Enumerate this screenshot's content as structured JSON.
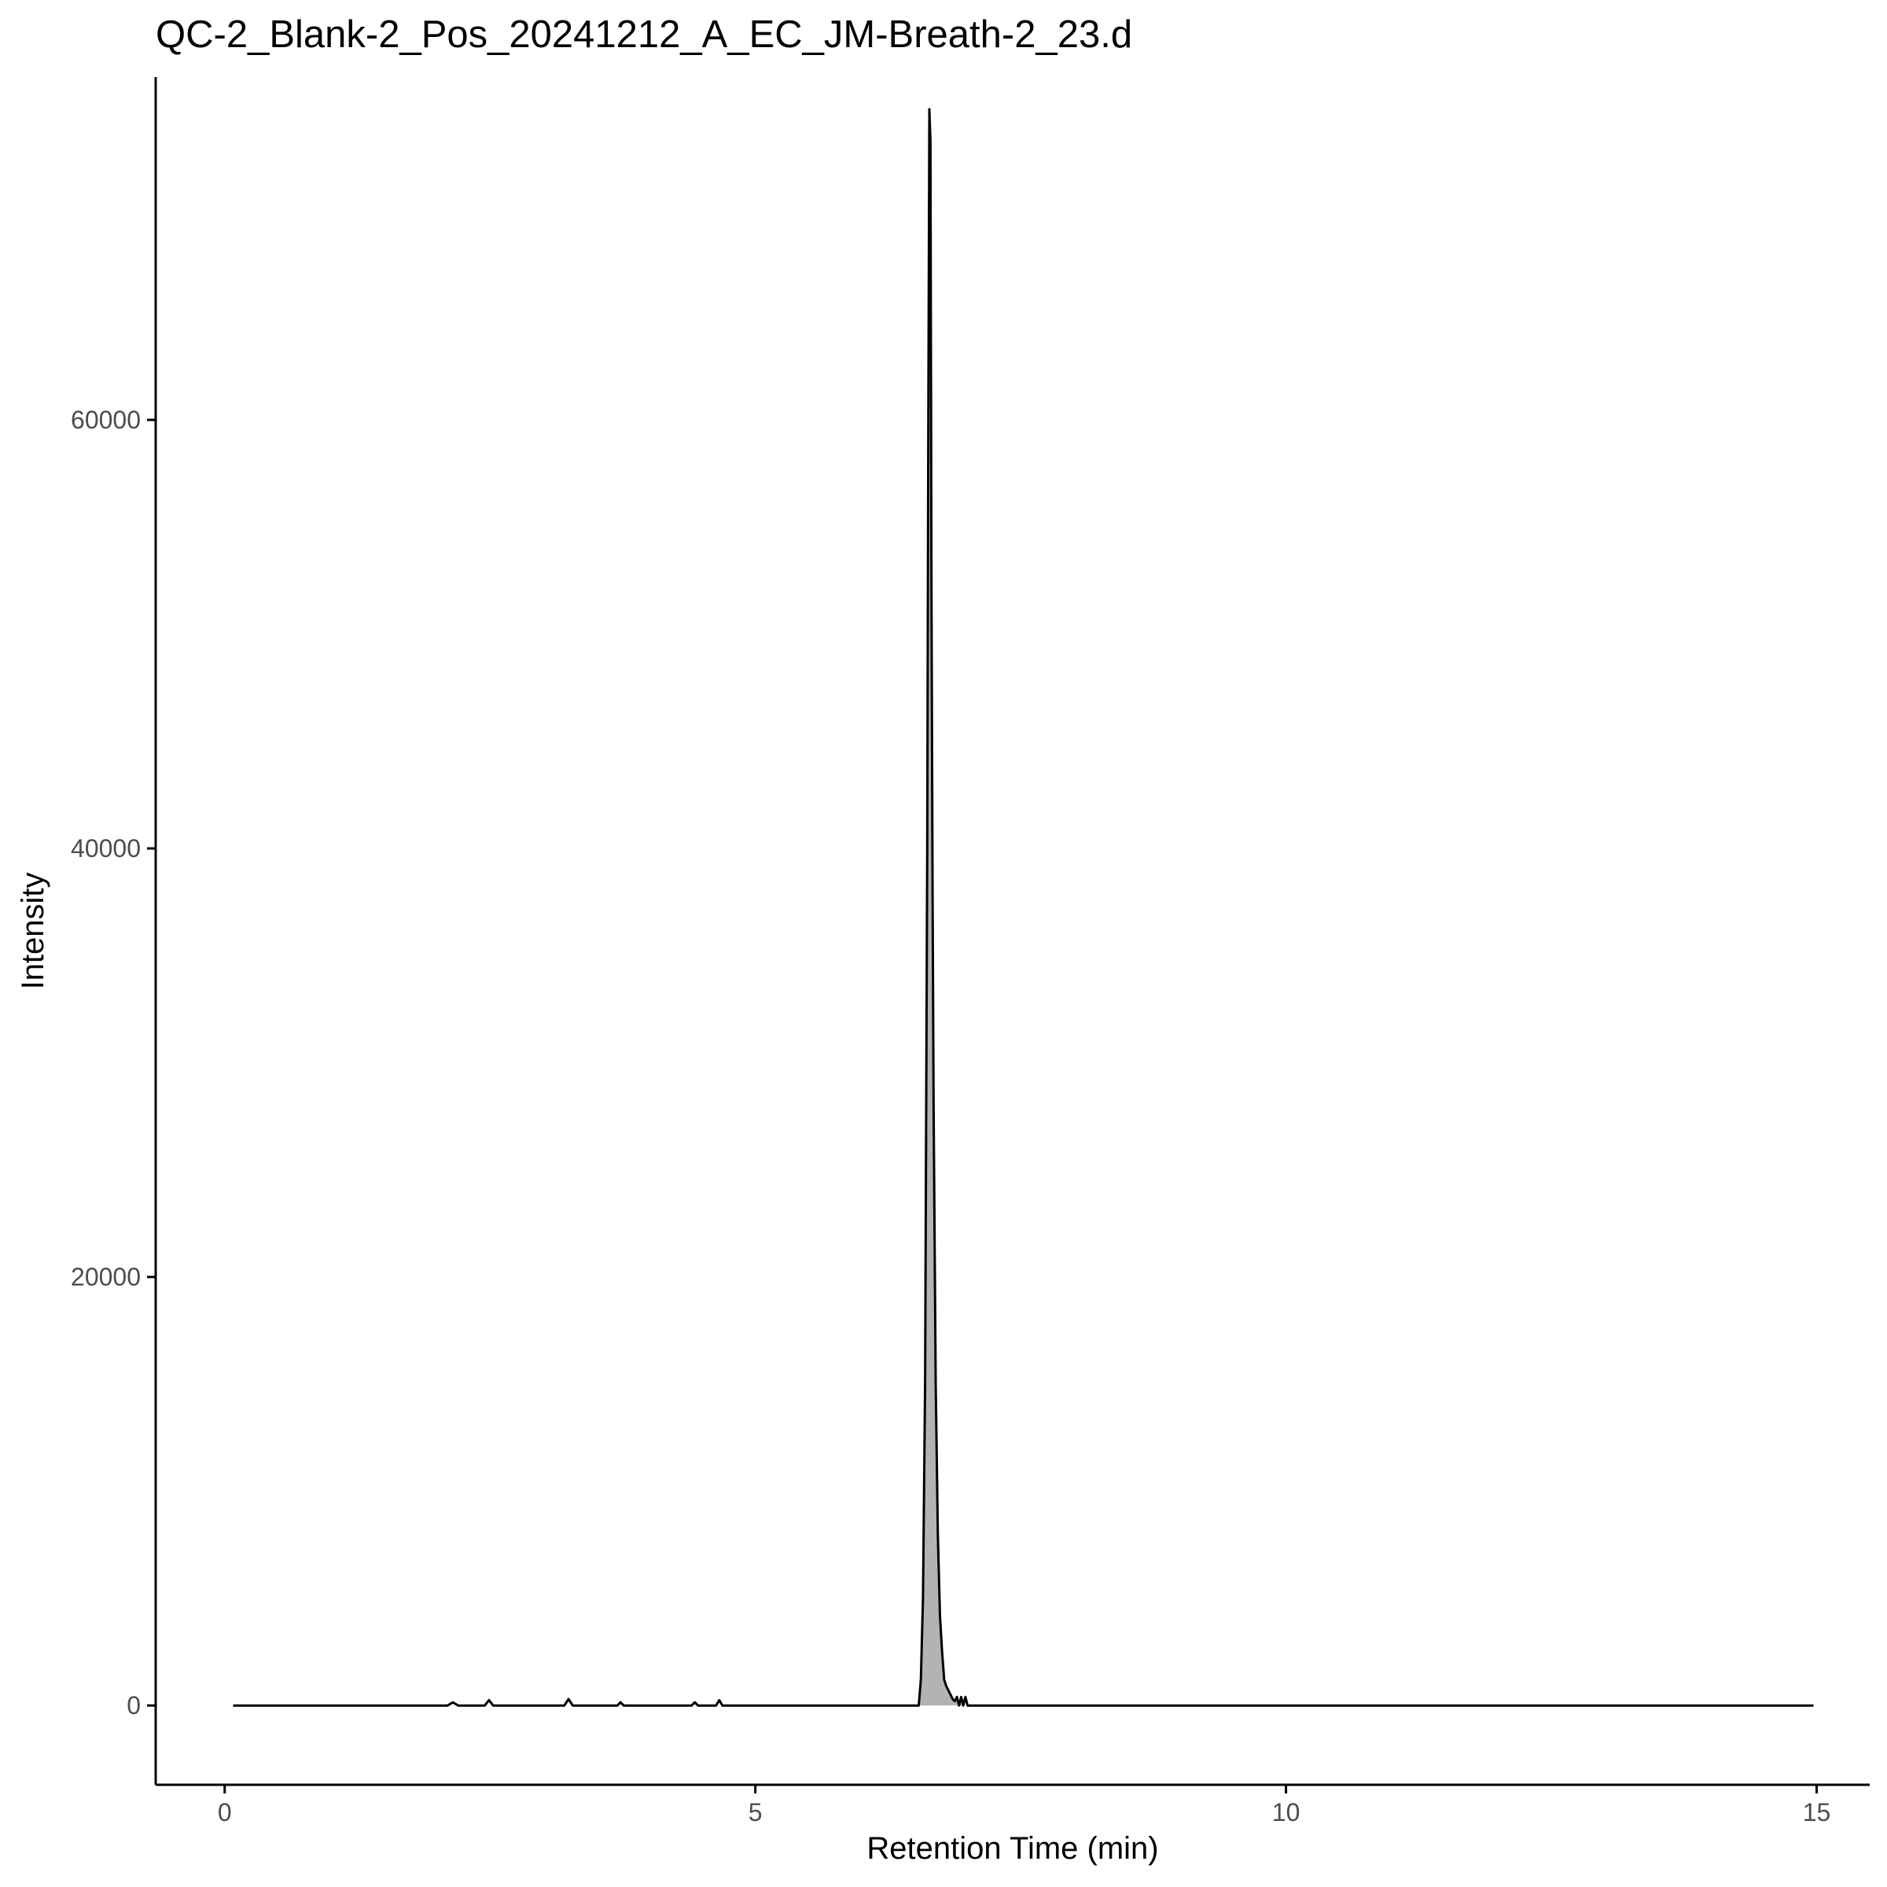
{
  "chart_data": {
    "type": "line",
    "title": "QC-2_Blank-2_Pos_20241212_A_EC_JM-Breath-2_23.d",
    "xlabel": "Retention Time (min)",
    "ylabel": "Intensity",
    "xlim": [
      -0.65,
      15.5
    ],
    "ylim": [
      -3700,
      76000
    ],
    "x_ticks": [
      0,
      5,
      10,
      15
    ],
    "x_tick_labels": [
      "0",
      "5",
      "10",
      "15"
    ],
    "y_ticks": [
      0,
      20000,
      40000,
      60000
    ],
    "y_tick_labels": [
      "0",
      "20000",
      "40000",
      "60000"
    ],
    "grid": false,
    "legend": "none",
    "trace_color": "#000000",
    "fill_color": "#b3b3b3",
    "series": [
      {
        "x": [
          0.08,
          2.1,
          2.15,
          2.2,
          2.45,
          2.49,
          2.53,
          3.2,
          3.24,
          3.28,
          3.7,
          3.73,
          3.76,
          4.4,
          4.43,
          4.46,
          4.63,
          4.66,
          4.69,
          6.54,
          6.56,
          6.58,
          6.6,
          6.62,
          6.63,
          6.64,
          6.65,
          6.66,
          6.67,
          6.68,
          6.7,
          6.72,
          6.74,
          6.76,
          6.78,
          6.8,
          6.82,
          6.84,
          6.86,
          6.88,
          6.9,
          6.92,
          6.94,
          6.96,
          6.98,
          7.0,
          7.02,
          14.97
        ],
        "y": [
          0,
          0,
          150,
          0,
          0,
          250,
          0,
          0,
          300,
          0,
          0,
          150,
          0,
          0,
          150,
          0,
          0,
          250,
          0,
          0,
          1200,
          5000,
          15000,
          40000,
          60000,
          74500,
          73000,
          52000,
          38000,
          28000,
          15000,
          8000,
          4200,
          2500,
          1200,
          900,
          700,
          500,
          300,
          200,
          400,
          0,
          400,
          0,
          400,
          0,
          0,
          0
        ]
      }
    ],
    "shaded_region": {
      "x_from": 6.54,
      "x_to": 6.96
    }
  }
}
